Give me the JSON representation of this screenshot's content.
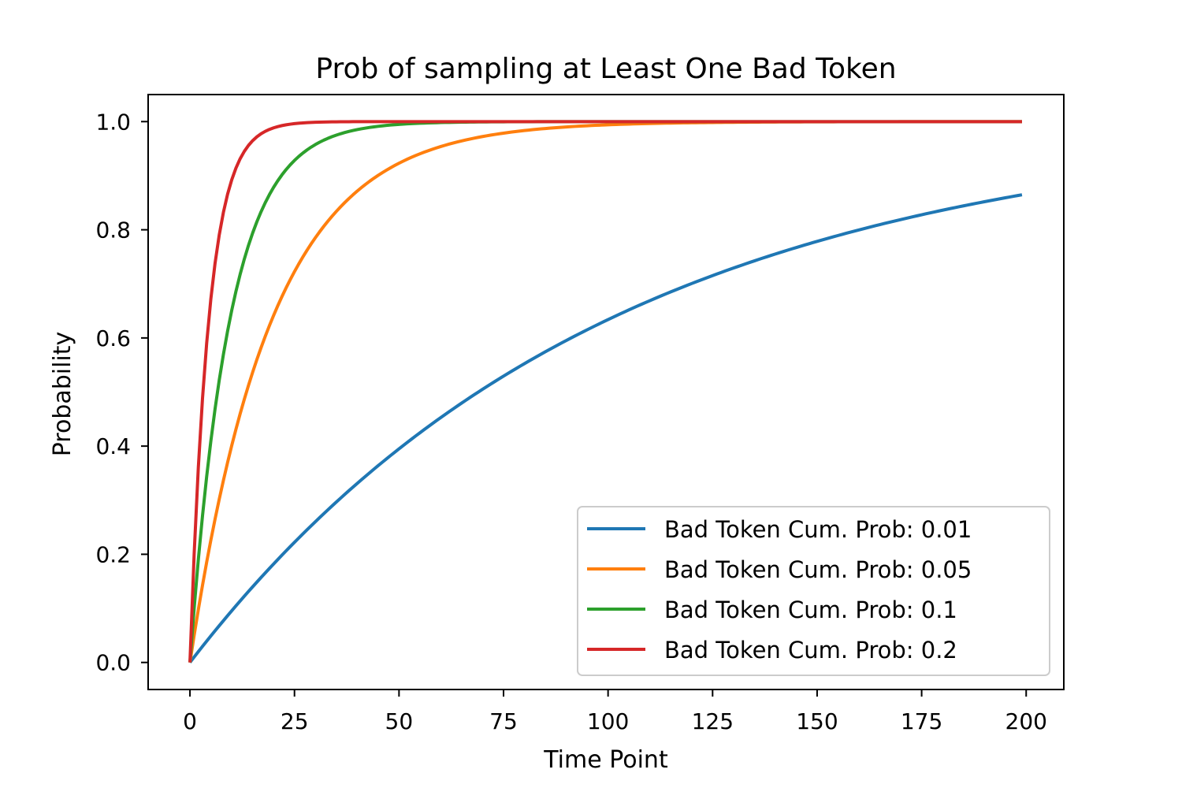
{
  "chart_data": {
    "type": "line",
    "title": "Prob of sampling at Least One Bad Token",
    "xlabel": "Time Point",
    "ylabel": "Probability",
    "xlim": [
      -10,
      209
    ],
    "ylim": [
      -0.05,
      1.05
    ],
    "xticks": [
      0,
      25,
      50,
      75,
      100,
      125,
      150,
      175,
      200
    ],
    "xtick_labels": [
      "0",
      "25",
      "50",
      "75",
      "100",
      "125",
      "150",
      "175",
      "200"
    ],
    "yticks": [
      0.0,
      0.2,
      0.4,
      0.6,
      0.8,
      1.0
    ],
    "ytick_labels": [
      "0.0",
      "0.2",
      "0.4",
      "0.6",
      "0.8",
      "1.0"
    ],
    "grid": false,
    "legend_position": "lower-right",
    "x_range": [
      0,
      199
    ],
    "formula": "1 - (1 - p)^t",
    "series": [
      {
        "name": "Bad Token Cum. Prob: 0.01",
        "p": 0.01,
        "color": "#1f77b4"
      },
      {
        "name": "Bad Token Cum. Prob: 0.05",
        "p": 0.05,
        "color": "#ff7f0e"
      },
      {
        "name": "Bad Token Cum. Prob: 0.1",
        "p": 0.1,
        "color": "#2ca02c"
      },
      {
        "name": "Bad Token Cum. Prob: 0.2",
        "p": 0.2,
        "color": "#d62728"
      }
    ]
  }
}
